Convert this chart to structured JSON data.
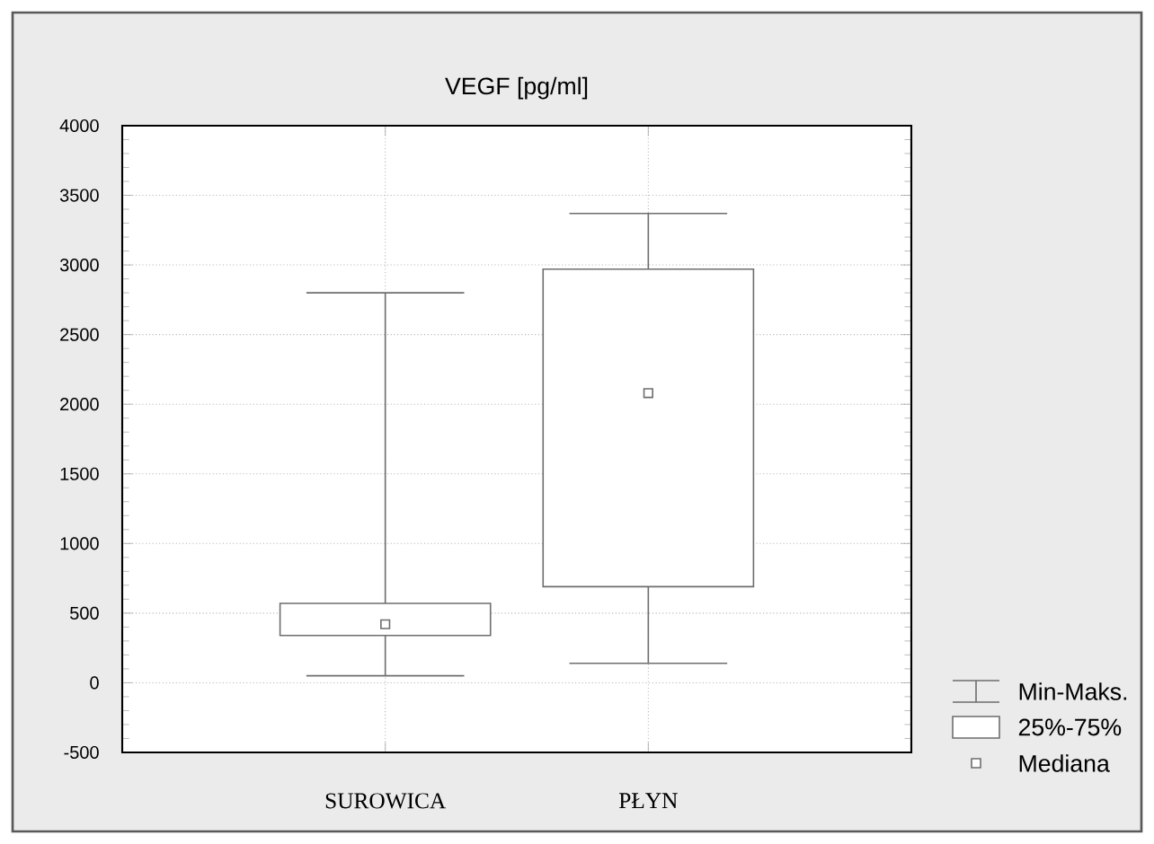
{
  "chart_data": {
    "type": "box",
    "title": "VEGF [pg/ml]",
    "categories": [
      "SUROWICA",
      "PŁYN"
    ],
    "boxes": [
      {
        "low": 50,
        "q1": 340,
        "median": 420,
        "q3": 570,
        "high": 2800
      },
      {
        "low": 140,
        "q1": 690,
        "median": 2080,
        "q3": 2970,
        "high": 3370
      }
    ],
    "color": "#6e6e6e",
    "ylim": [
      -500,
      4000
    ],
    "yticks": [
      -500,
      0,
      500,
      1000,
      1500,
      2000,
      2500,
      3000,
      3500,
      4000
    ],
    "grid": true,
    "marker": "square",
    "annotations": [
      "Min-Maks.",
      "25%-75%",
      "Mediana"
    ]
  }
}
